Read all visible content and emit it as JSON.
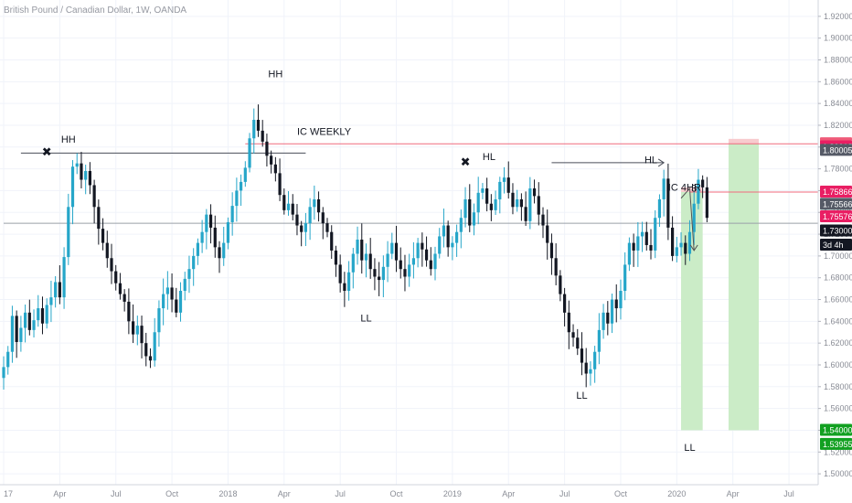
{
  "chart_data": {
    "type": "candlestick",
    "title": "British Pound / Canadian Dollar, 1W, OANDA",
    "colors": {
      "up": "#26a6c9",
      "down": "#131722",
      "grid": "#f0f3fa",
      "support_line": "#f06a7e",
      "target_zone": "#c8ebc4",
      "stop_zone": "#f7c5c9",
      "arrow": "#555555"
    },
    "x_axis": {
      "ticks": [
        {
          "label": "17",
          "t": 0
        },
        {
          "label": "Apr",
          "t": 13
        },
        {
          "label": "Jul",
          "t": 26
        },
        {
          "label": "Oct",
          "t": 39
        },
        {
          "label": "2018",
          "t": 52
        },
        {
          "label": "Apr",
          "t": 65
        },
        {
          "label": "Jul",
          "t": 78
        },
        {
          "label": "Oct",
          "t": 91
        },
        {
          "label": "2019",
          "t": 104
        },
        {
          "label": "Apr",
          "t": 117
        },
        {
          "label": "Jul",
          "t": 130
        },
        {
          "label": "Oct",
          "t": 143
        },
        {
          "label": "2020",
          "t": 156
        },
        {
          "label": "Apr",
          "t": 169
        },
        {
          "label": "Jul",
          "t": 182
        }
      ]
    },
    "y_axis": {
      "ylim": [
        1.49,
        1.935
      ],
      "ticks": [
        "1.92000",
        "1.90000",
        "1.88000",
        "1.86000",
        "1.84000",
        "1.82000",
        "1.80000",
        "1.78000",
        "1.76000",
        "1.74000",
        "1.72000",
        "1.70000",
        "1.68000",
        "1.66000",
        "1.64000",
        "1.62000",
        "1.60000",
        "1.58000",
        "1.56000",
        "1.54000",
        "1.52000",
        "1.50000"
      ]
    },
    "candle_closes": [
      1.598,
      1.612,
      1.645,
      1.621,
      1.634,
      1.648,
      1.632,
      1.641,
      1.652,
      1.638,
      1.655,
      1.662,
      1.676,
      1.662,
      1.699,
      1.745,
      1.782,
      1.785,
      1.77,
      1.778,
      1.765,
      1.745,
      1.725,
      1.712,
      1.698,
      1.686,
      1.675,
      1.665,
      1.658,
      1.64,
      1.628,
      1.636,
      1.62,
      1.608,
      1.604,
      1.63,
      1.652,
      1.665,
      1.671,
      1.66,
      1.648,
      1.668,
      1.679,
      1.688,
      1.7,
      1.712,
      1.722,
      1.738,
      1.726,
      1.708,
      1.698,
      1.712,
      1.731,
      1.746,
      1.76,
      1.768,
      1.781,
      1.808,
      1.825,
      1.815,
      1.805,
      1.792,
      1.784,
      1.776,
      1.756,
      1.742,
      1.748,
      1.738,
      1.728,
      1.722,
      1.73,
      1.745,
      1.752,
      1.74,
      1.73,
      1.722,
      1.705,
      1.692,
      1.675,
      1.668,
      1.685,
      1.702,
      1.715,
      1.696,
      1.702,
      1.688,
      1.681,
      1.678,
      1.69,
      1.702,
      1.712,
      1.696,
      1.688,
      1.681,
      1.692,
      1.698,
      1.712,
      1.706,
      1.696,
      1.688,
      1.702,
      1.718,
      1.728,
      1.708,
      1.712,
      1.722,
      1.735,
      1.752,
      1.728,
      1.74,
      1.758,
      1.762,
      1.748,
      1.742,
      1.752,
      1.768,
      1.772,
      1.758,
      1.745,
      1.752,
      1.745,
      1.732,
      1.762,
      1.755,
      1.738,
      1.728,
      1.712,
      1.698,
      1.682,
      1.665,
      1.648,
      1.63,
      1.625,
      1.615,
      1.602,
      1.592,
      1.596,
      1.612,
      1.632,
      1.648,
      1.638,
      1.66,
      1.652,
      1.668,
      1.692,
      1.712,
      1.705,
      1.718,
      1.722,
      1.71,
      1.705,
      1.735,
      1.752,
      1.771,
      1.726,
      1.7,
      1.708,
      1.712,
      1.702,
      1.722,
      1.748,
      1.77,
      1.763,
      1.735
    ],
    "horizontal_levels": [
      {
        "price": 1.7945,
        "kind": "dark",
        "t_start": 4,
        "t_end": 70
      },
      {
        "price": 1.7856,
        "kind": "dark-arrow",
        "t_start": 127,
        "t_end": 153
      },
      {
        "price": 1.803,
        "kind": "support",
        "t_start": 56,
        "t_end": 200
      },
      {
        "price": 1.7587,
        "kind": "support",
        "t_start": 159,
        "t_end": 200
      },
      {
        "price": 1.73,
        "kind": "gray",
        "t_start": 0,
        "t_end": 200
      }
    ],
    "zones": [
      {
        "kind": "target",
        "t_start": 157,
        "t_end": 162,
        "y_top": 1.7587,
        "y_bottom": 1.54
      },
      {
        "kind": "stop",
        "t_start": 157,
        "t_end": 162,
        "y_top": 1.763,
        "y_bottom": 1.7587
      },
      {
        "kind": "target",
        "t_start": 168,
        "t_end": 175,
        "y_top": 1.803,
        "y_bottom": 1.54
      },
      {
        "kind": "stop",
        "t_start": 168,
        "t_end": 175,
        "y_top": 1.8075,
        "y_bottom": 1.803
      }
    ],
    "arrow_path": [
      [
        157,
        1.753
      ],
      [
        159,
        1.762
      ],
      [
        160,
        1.705
      ]
    ],
    "annotations": [
      {
        "text": "HH",
        "t": 15,
        "price": 1.804,
        "anchor": "middle"
      },
      {
        "text": "HH",
        "t": 63,
        "price": 1.864,
        "anchor": "middle"
      },
      {
        "text": "IC WEEKLY",
        "t": 68,
        "price": 1.811,
        "anchor": "start"
      },
      {
        "text": "HL",
        "t": 111,
        "price": 1.788,
        "anchor": "start"
      },
      {
        "text": "HL",
        "t": 150,
        "price": 1.785,
        "anchor": "middle"
      },
      {
        "text": "IC 4HR",
        "t": 154,
        "price": 1.76,
        "anchor": "start"
      },
      {
        "text": "LL",
        "t": 84,
        "price": 1.64,
        "anchor": "middle"
      },
      {
        "text": "LL",
        "t": 134,
        "price": 1.569,
        "anchor": "middle"
      },
      {
        "text": "LL",
        "t": 159,
        "price": 1.521,
        "anchor": "middle"
      },
      {
        "text": "3",
        "t": 160,
        "price": 1.759,
        "anchor": "middle"
      }
    ],
    "markers": [
      {
        "symbol": "✖",
        "t": 10,
        "price": 1.796
      },
      {
        "symbol": "✖",
        "t": 107,
        "price": 1.787
      }
    ],
    "price_badges": [
      {
        "label": "1.80305",
        "price": 1.80305,
        "bg": "#ef5b79",
        "fg": "#ffffff"
      },
      {
        "label": "1.80018",
        "price": 1.8002,
        "bg": "#e91e63",
        "fg": "#ffffff"
      },
      {
        "label": "1.80005",
        "price": 1.797,
        "bg": "#555a66",
        "fg": "#ffffff"
      },
      {
        "label": "1.75866",
        "price": 1.75866,
        "bg": "#e91e63",
        "fg": "#ffffff"
      },
      {
        "label": "1.75566",
        "price": 1.7475,
        "bg": "#555a66",
        "fg": "#ffffff"
      },
      {
        "label": "1.75576",
        "price": 1.736,
        "bg": "#e91e63",
        "fg": "#ffffff"
      },
      {
        "label": "1.73000",
        "price": 1.723,
        "bg": "#131722",
        "fg": "#ffffff"
      },
      {
        "label": "3d 4h",
        "price": 1.71,
        "bg": "#131722",
        "fg": "#ffffff"
      },
      {
        "label": "1.54000",
        "price": 1.54,
        "bg": "#12a021",
        "fg": "#ffffff"
      },
      {
        "label": "1.53955",
        "price": 1.527,
        "bg": "#12a021",
        "fg": "#ffffff"
      }
    ]
  }
}
